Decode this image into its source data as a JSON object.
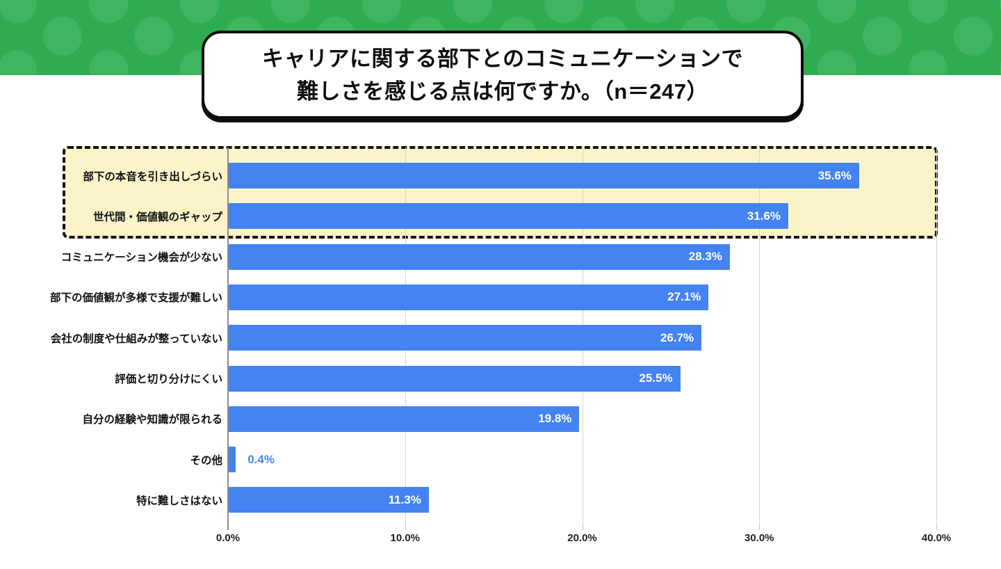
{
  "header": {
    "band_color": "#2fac51",
    "dot_color": "#3fb560"
  },
  "title": {
    "line1": "キャリアに関する部下とのコミュニケーションで",
    "line2": "難しさを感じる点は何ですか。（n＝247）",
    "n": 247
  },
  "chart_data": {
    "type": "bar",
    "orientation": "horizontal",
    "title": "キャリアに関する部下とのコミュニケーションで難しさを感じる点は何ですか。（n＝247）",
    "categories": [
      "部下の本音を引き出しづらい",
      "世代間・価値観のギャップ",
      "コミュニケーション機会が少ない",
      "部下の価値観が多様で支援が難しい",
      "会社の制度や仕組みが整っていない",
      "評価と切り分けにくい",
      "自分の経験や知識が限られる",
      "その他",
      "特に難しさはない"
    ],
    "values": [
      35.6,
      31.6,
      28.3,
      27.1,
      26.7,
      25.5,
      19.8,
      0.4,
      11.3
    ],
    "value_labels": [
      "35.6%",
      "31.6%",
      "28.3%",
      "27.1%",
      "26.7%",
      "25.5%",
      "19.8%",
      "0.4%",
      "11.3%"
    ],
    "xlim": [
      0,
      40
    ],
    "x_ticks": [
      0,
      10,
      20,
      30,
      40
    ],
    "x_tick_labels": [
      "0.0%",
      "10.0%",
      "20.0%",
      "30.0%",
      "40.0%"
    ],
    "grid": true,
    "legend": false,
    "bar_color": "#4483f2",
    "value_label_color_inside": "#ffffff",
    "value_label_color_outside": "#4285f4",
    "highlighted_rows": [
      0,
      1
    ],
    "highlight_fill": "#fbf4c9",
    "highlight_border": "#141414"
  }
}
